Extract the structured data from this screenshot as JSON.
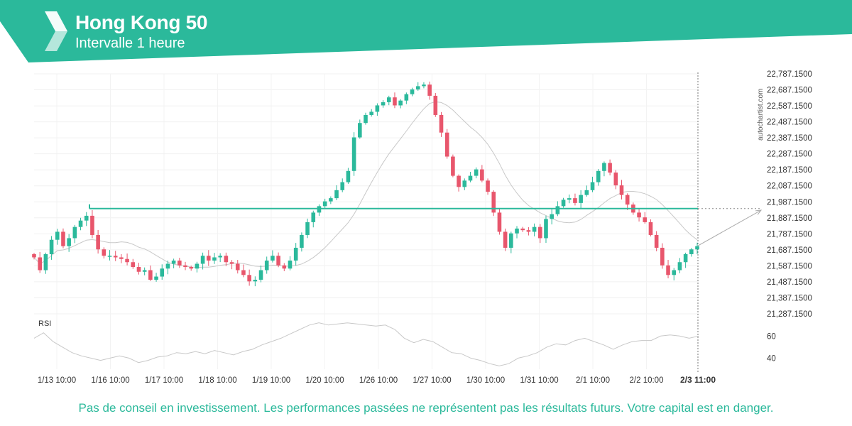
{
  "header": {
    "title": "Hong Kong 50",
    "subtitle": "Intervalle 1 heure",
    "brand_color": "#2bb99b",
    "logo_icon": "autochartist-logo-icon"
  },
  "watermark": "autochartist.com",
  "disclaimer": "Pas de conseil en investissement. Les performances passées ne représentent pas les résultats futurs. Votre capital est en danger.",
  "chart_data": {
    "type": "candlestick",
    "colors": {
      "up": "#2bb99b",
      "down": "#e8566c",
      "level": "#2bb99b",
      "moving_average": "#c8c8c8",
      "rsi": "#c8c8c8"
    },
    "x_ticks": [
      "1/13 10:00",
      "1/16 10:00",
      "1/17 10:00",
      "1/18 10:00",
      "1/19 10:00",
      "1/20 10:00",
      "1/26 10:00",
      "1/27 10:00",
      "1/30 10:00",
      "1/31 10:00",
      "2/1 10:00",
      "2/2 10:00"
    ],
    "current_time_label": "2/3 11:00",
    "y_ticks": [
      "22,787.1500",
      "22,687.1500",
      "22,587.1500",
      "22,487.1500",
      "22,387.1500",
      "22,287.1500",
      "22,187.1500",
      "22,087.1500",
      "21,987.1500",
      "21,887.1500",
      "21,787.1500",
      "21,687.1500",
      "21,587.1500",
      "21,487.1500",
      "21,387.1500",
      "21,287.1500"
    ],
    "y_range": [
      21287.15,
      22787.15
    ],
    "horizontal_level": 21945,
    "forecast_target": 21935,
    "rsi_label": "RSI",
    "rsi_ticks": [
      "60",
      "40"
    ],
    "rsi_range": [
      30,
      75
    ],
    "close_path": [
      21640,
      21560,
      21660,
      21750,
      21800,
      21710,
      21760,
      21830,
      21870,
      21900,
      21780,
      21690,
      21650,
      21650,
      21640,
      21630,
      21610,
      21580,
      21550,
      21560,
      21500,
      21520,
      21570,
      21600,
      21620,
      21590,
      21580,
      21570,
      21600,
      21650,
      21620,
      21640,
      21650,
      21610,
      21600,
      21560,
      21530,
      21490,
      21500,
      21560,
      21620,
      21650,
      21590,
      21570,
      21620,
      21700,
      21780,
      21860,
      21920,
      21960,
      21990,
      22010,
      22060,
      22110,
      22180,
      22390,
      22480,
      22530,
      22550,
      22590,
      22610,
      22640,
      22590,
      22620,
      22660,
      22690,
      22710,
      22720,
      22650,
      22530,
      22420,
      22270,
      22150,
      22080,
      22120,
      22150,
      22190,
      22120,
      22050,
      21920,
      21800,
      21700,
      21790,
      21820,
      21810,
      21800,
      21830,
      21760,
      21880,
      21910,
      21960,
      22000,
      22010,
      21980,
      22030,
      22060,
      22110,
      22180,
      22230,
      22170,
      22090,
      22030,
      21970,
      21920,
      21890,
      21860,
      21780,
      21700,
      21590,
      21530,
      21560,
      21610,
      21660,
      21690,
      21710
    ],
    "rsi_values": [
      58,
      63,
      55,
      50,
      45,
      42,
      40,
      38,
      40,
      42,
      40,
      36,
      38,
      41,
      42,
      45,
      44,
      46,
      44,
      47,
      45,
      43,
      46,
      48,
      52,
      55,
      58,
      62,
      66,
      70,
      72,
      70,
      71,
      72,
      71,
      70,
      69,
      70,
      66,
      58,
      54,
      57,
      55,
      50,
      45,
      44,
      40,
      38,
      35,
      33,
      35,
      40,
      42,
      45,
      50,
      53,
      52,
      56,
      58,
      55,
      52,
      48,
      52,
      55,
      56,
      56,
      60,
      61,
      60,
      58,
      60
    ]
  }
}
